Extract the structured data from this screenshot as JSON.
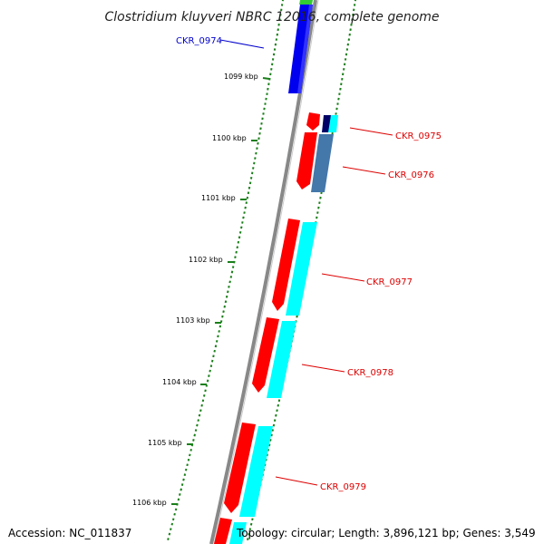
{
  "title": "Clostridium kluyveri NBRC 12016, complete genome",
  "footer": {
    "accession": "Accession: NC_011837",
    "topology": "Topology: circular; Length: 3,896,121 bp; Genes: 3,549"
  },
  "tick_labels": [
    "1099 kbp",
    "1100 kbp",
    "1101 kbp",
    "1102 kbp",
    "1103 kbp",
    "1104 kbp",
    "1105 kbp",
    "1106 kbp"
  ],
  "gene_labels": [
    {
      "text": "CKR_0974",
      "color": "#0000cc"
    },
    {
      "text": "CKR_0975",
      "color": "#dd0000"
    },
    {
      "text": "CKR_0976",
      "color": "#dd0000"
    },
    {
      "text": "CKR_0977",
      "color": "#dd0000"
    },
    {
      "text": "CKR_0978",
      "color": "#dd0000"
    },
    {
      "text": "CKR_0979",
      "color": "#dd0000"
    }
  ],
  "colors": {
    "backbone": "#888888",
    "dotted_track": "#1a7f1a",
    "gene_red": "#ff0000",
    "gene_cyan": "#00ffff",
    "gene_blue": "#0000ee",
    "gene_navy": "#000066",
    "gene_steelblue": "#4477aa",
    "gene_green": "#33cc33"
  }
}
